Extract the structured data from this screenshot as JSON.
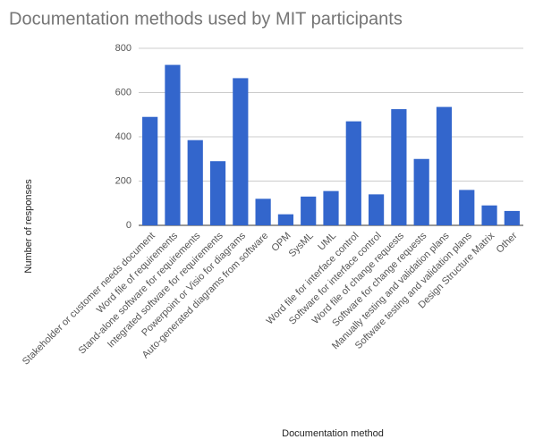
{
  "chart_data": {
    "type": "bar",
    "title": "Documentation methods used by MIT participants",
    "x_label": "Documentation method",
    "y_label": "Number of responses",
    "categories": [
      "Stakeholder or customer needs document",
      "Word file of requirements",
      "Stand-alone software for requirements",
      "Integrated software for requirements",
      "Powerpoint or Visio for diagrams",
      "Auto-generated diagrams from software",
      "OPM",
      "SysML",
      "UML",
      "Word file for interface control",
      "Software for interface control",
      "Word file of change requests",
      "Software for change requests",
      "Manually testing and validation plans",
      "Software testing and validation plans",
      "Design Structure Matrix",
      "Other"
    ],
    "values": [
      490,
      725,
      385,
      290,
      665,
      120,
      50,
      130,
      155,
      470,
      140,
      525,
      300,
      535,
      160,
      90,
      65
    ],
    "color": "#3366cc",
    "ylim": [
      0,
      800
    ],
    "yticks": [
      0,
      200,
      400,
      600,
      800
    ],
    "grid": true
  }
}
